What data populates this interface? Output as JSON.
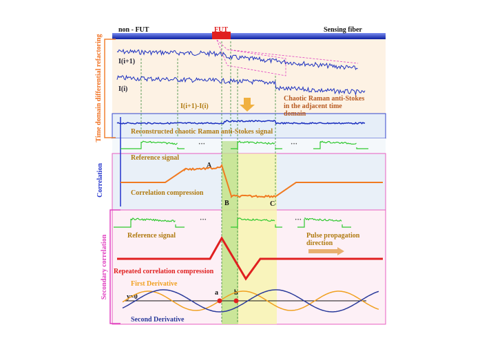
{
  "fiber": {
    "left": "non - FUT",
    "center": "FUT",
    "right": "Sensing fiber"
  },
  "sections": {
    "differential": "Time domain differential refactoring",
    "correlation": "Correlation",
    "secondary": "Secondary correlation"
  },
  "traces": {
    "upper": "I(i+1)",
    "lower": "I(i)",
    "difference": "I(i+1)-I(i)",
    "adjacent": [
      "Chaotic Raman anti-Stokes",
      "in the adjacent time",
      "domain"
    ],
    "reconstructed": "Reconstructed chaotic Raman anti-Stokes signal"
  },
  "reference": {
    "label_1": "Reference signal",
    "label_2": "Reference signal",
    "ellipsis": "···"
  },
  "correlation": {
    "points": [
      "A",
      "B",
      "C"
    ],
    "label": "Correlation compression"
  },
  "secondary": {
    "direction": [
      "Pulse propagation",
      "direction"
    ],
    "label": "Repeated correlation compression",
    "first": "First Derivative",
    "second": "Second Derivative",
    "zero": "y=0",
    "points": [
      "a",
      "b"
    ]
  }
}
